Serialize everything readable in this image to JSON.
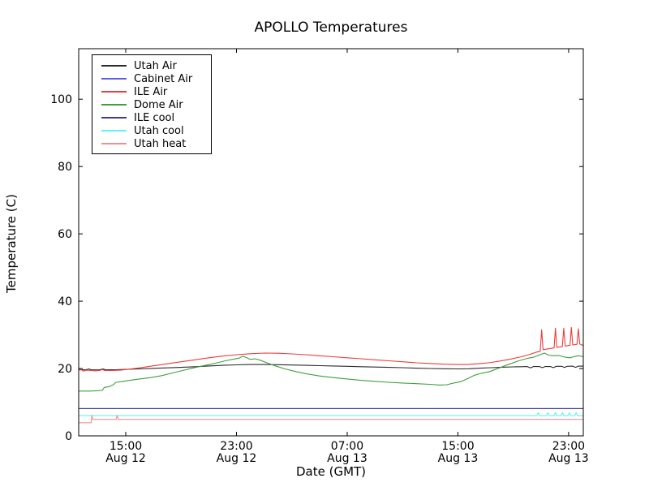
{
  "chart_data": {
    "type": "line",
    "title": "APOLLO Temperatures",
    "xlabel": "Date (GMT)",
    "ylabel": "Temperature (C)",
    "xlim": [
      11.6,
      48.06
    ],
    "ylim": [
      0,
      115
    ],
    "x_unit_note": "x values are hours since Aug 12 00:00 GMT",
    "grid": false,
    "legend_position": "upper left",
    "y_ticks": [
      0,
      20,
      40,
      60,
      80,
      100
    ],
    "x_ticks": [
      {
        "t": 15,
        "time": "15:00",
        "date": "Aug 12"
      },
      {
        "t": 23,
        "time": "23:00",
        "date": "Aug 12"
      },
      {
        "t": 31,
        "time": "07:00",
        "date": "Aug 13"
      },
      {
        "t": 39,
        "time": "15:00",
        "date": "Aug 13"
      },
      {
        "t": 47,
        "time": "23:00",
        "date": "Aug 13"
      }
    ],
    "series": [
      {
        "name": "Utah Air",
        "color": "#2b2b2b",
        "points": [
          [
            11.6,
            19.7
          ],
          [
            12.1,
            19.6
          ],
          [
            12.35,
            19.9
          ],
          [
            12.5,
            19.6
          ],
          [
            13.1,
            19.6
          ],
          [
            13.35,
            19.9
          ],
          [
            13.55,
            19.6
          ],
          [
            14.2,
            19.65
          ],
          [
            15,
            19.75
          ],
          [
            16,
            19.9
          ],
          [
            17,
            20.05
          ],
          [
            18,
            20.2
          ],
          [
            19,
            20.35
          ],
          [
            20,
            20.55
          ],
          [
            21,
            20.75
          ],
          [
            22,
            20.95
          ],
          [
            23,
            21.1
          ],
          [
            24,
            21.2
          ],
          [
            25,
            21.2
          ],
          [
            26,
            21.15
          ],
          [
            27,
            21.05
          ],
          [
            28,
            20.95
          ],
          [
            29,
            20.85
          ],
          [
            30,
            20.75
          ],
          [
            31,
            20.65
          ],
          [
            32,
            20.55
          ],
          [
            33,
            20.45
          ],
          [
            34,
            20.35
          ],
          [
            35,
            20.25
          ],
          [
            36,
            20.1
          ],
          [
            37,
            20.0
          ],
          [
            38,
            19.95
          ],
          [
            39,
            19.9
          ],
          [
            39.8,
            19.95
          ],
          [
            40.6,
            20.1
          ],
          [
            41.4,
            20.25
          ],
          [
            42.2,
            20.4
          ],
          [
            43,
            20.5
          ],
          [
            43.6,
            20.55
          ],
          [
            44.0,
            20.6
          ],
          [
            44.25,
            20.2
          ],
          [
            44.45,
            20.6
          ],
          [
            44.9,
            20.6
          ],
          [
            45.1,
            20.25
          ],
          [
            45.3,
            20.6
          ],
          [
            45.7,
            20.6
          ],
          [
            45.9,
            20.25
          ],
          [
            46.1,
            20.65
          ],
          [
            46.5,
            20.65
          ],
          [
            46.7,
            20.3
          ],
          [
            46.9,
            20.65
          ],
          [
            47.3,
            20.7
          ],
          [
            47.5,
            20.35
          ],
          [
            47.7,
            20.7
          ],
          [
            48.06,
            20.7
          ]
        ]
      },
      {
        "name": "Cabinet Air",
        "color": "#5c5ce6",
        "points": [
          [
            11.6,
            8.1
          ],
          [
            48.06,
            8.1
          ]
        ]
      },
      {
        "name": "ILE Air",
        "color": "#ee3b3b",
        "points": [
          [
            11.6,
            19.6
          ],
          [
            11.8,
            19.6
          ],
          [
            11.95,
            19.25
          ],
          [
            12.15,
            19.5
          ],
          [
            12.5,
            19.4
          ],
          [
            12.8,
            19.3
          ],
          [
            13.1,
            19.4
          ],
          [
            13.3,
            19.7
          ],
          [
            13.5,
            19.4
          ],
          [
            14.0,
            19.4
          ],
          [
            14.6,
            19.5
          ],
          [
            15.2,
            19.8
          ],
          [
            16,
            20.2
          ],
          [
            17,
            20.8
          ],
          [
            18,
            21.4
          ],
          [
            19,
            22.0
          ],
          [
            20,
            22.6
          ],
          [
            21,
            23.2
          ],
          [
            22,
            23.7
          ],
          [
            23,
            24.1
          ],
          [
            24,
            24.4
          ],
          [
            25,
            24.6
          ],
          [
            26,
            24.55
          ],
          [
            27,
            24.35
          ],
          [
            28,
            24.1
          ],
          [
            29,
            23.8
          ],
          [
            30,
            23.5
          ],
          [
            31,
            23.2
          ],
          [
            32,
            22.9
          ],
          [
            33,
            22.6
          ],
          [
            34,
            22.3
          ],
          [
            35,
            22.0
          ],
          [
            36,
            21.7
          ],
          [
            37,
            21.5
          ],
          [
            38,
            21.3
          ],
          [
            39,
            21.2
          ],
          [
            39.7,
            21.2
          ],
          [
            40.4,
            21.4
          ],
          [
            41.2,
            21.7
          ],
          [
            42,
            22.2
          ],
          [
            42.8,
            22.8
          ],
          [
            43.6,
            23.5
          ],
          [
            44.2,
            24.2
          ],
          [
            44.7,
            24.9
          ],
          [
            44.95,
            25.1
          ],
          [
            45.05,
            31.5
          ],
          [
            45.15,
            25.6
          ],
          [
            45.6,
            25.9
          ],
          [
            45.95,
            26.1
          ],
          [
            46.05,
            32.0
          ],
          [
            46.15,
            26.3
          ],
          [
            46.55,
            26.5
          ],
          [
            46.65,
            32.0
          ],
          [
            46.75,
            26.7
          ],
          [
            47.1,
            26.9
          ],
          [
            47.2,
            32.2
          ],
          [
            47.3,
            27.0
          ],
          [
            47.6,
            27.2
          ],
          [
            47.7,
            31.8
          ],
          [
            47.8,
            27.3
          ],
          [
            48.06,
            26.8
          ]
        ]
      },
      {
        "name": "Dome Air",
        "color": "#3f9e3f",
        "points": [
          [
            11.6,
            13.3
          ],
          [
            12.4,
            13.3
          ],
          [
            12.9,
            13.4
          ],
          [
            13.3,
            13.5
          ],
          [
            13.45,
            14.4
          ],
          [
            13.8,
            14.6
          ],
          [
            14.1,
            15.2
          ],
          [
            14.3,
            15.9
          ],
          [
            14.7,
            16.1
          ],
          [
            15.3,
            16.5
          ],
          [
            16,
            16.9
          ],
          [
            16.8,
            17.3
          ],
          [
            17.6,
            17.9
          ],
          [
            18.4,
            18.7
          ],
          [
            19.2,
            19.5
          ],
          [
            20,
            20.3
          ],
          [
            20.8,
            21.0
          ],
          [
            21.5,
            21.6
          ],
          [
            22.2,
            22.3
          ],
          [
            22.8,
            22.8
          ],
          [
            23.2,
            23.1
          ],
          [
            23.45,
            23.7
          ],
          [
            23.7,
            23.3
          ],
          [
            24.0,
            22.7
          ],
          [
            24.35,
            22.9
          ],
          [
            24.7,
            22.5
          ],
          [
            25.2,
            21.7
          ],
          [
            25.8,
            20.8
          ],
          [
            26.5,
            19.9
          ],
          [
            27.3,
            19.1
          ],
          [
            28.1,
            18.4
          ],
          [
            29,
            17.8
          ],
          [
            30,
            17.3
          ],
          [
            31,
            16.9
          ],
          [
            32,
            16.5
          ],
          [
            33,
            16.2
          ],
          [
            34,
            15.9
          ],
          [
            35,
            15.7
          ],
          [
            36,
            15.5
          ],
          [
            37,
            15.3
          ],
          [
            37.7,
            15.1
          ],
          [
            38.2,
            15.2
          ],
          [
            38.7,
            15.7
          ],
          [
            39.2,
            16.1
          ],
          [
            39.7,
            17.0
          ],
          [
            40.2,
            18.0
          ],
          [
            40.7,
            18.6
          ],
          [
            41.3,
            19.1
          ],
          [
            42,
            20.2
          ],
          [
            42.7,
            21.3
          ],
          [
            43.4,
            22.3
          ],
          [
            44,
            23.0
          ],
          [
            44.5,
            23.4
          ],
          [
            45,
            24.2
          ],
          [
            45.25,
            24.6
          ],
          [
            45.55,
            24.0
          ],
          [
            45.9,
            23.8
          ],
          [
            46.3,
            23.9
          ],
          [
            46.7,
            23.4
          ],
          [
            47.1,
            23.2
          ],
          [
            47.45,
            23.6
          ],
          [
            47.75,
            23.8
          ],
          [
            48.06,
            23.5
          ]
        ]
      },
      {
        "name": "ILE cool",
        "color": "#3c3c8c",
        "points": [
          [
            11.6,
            8.1
          ],
          [
            48.06,
            8.1
          ]
        ]
      },
      {
        "name": "Utah cool",
        "color": "#5ff2f2",
        "points": [
          [
            11.6,
            6.0
          ],
          [
            44.7,
            6.0
          ],
          [
            44.8,
            6.9
          ],
          [
            44.9,
            6.0
          ],
          [
            45.4,
            6.0
          ],
          [
            45.5,
            6.9
          ],
          [
            45.6,
            6.0
          ],
          [
            45.95,
            6.0
          ],
          [
            46.05,
            6.9
          ],
          [
            46.15,
            6.0
          ],
          [
            46.45,
            6.0
          ],
          [
            46.55,
            6.9
          ],
          [
            46.65,
            6.0
          ],
          [
            46.95,
            6.0
          ],
          [
            47.05,
            6.9
          ],
          [
            47.15,
            6.0
          ],
          [
            47.45,
            6.0
          ],
          [
            47.55,
            6.9
          ],
          [
            47.65,
            6.0
          ],
          [
            48.06,
            6.0
          ]
        ]
      },
      {
        "name": "Utah heat",
        "color": "#f98d8d",
        "points": [
          [
            11.6,
            3.9
          ],
          [
            12.5,
            3.9
          ],
          [
            12.55,
            6.1
          ],
          [
            12.62,
            4.9
          ],
          [
            14.3,
            4.9
          ],
          [
            14.38,
            6.1
          ],
          [
            14.45,
            4.9
          ],
          [
            48.06,
            4.9
          ]
        ]
      }
    ]
  }
}
